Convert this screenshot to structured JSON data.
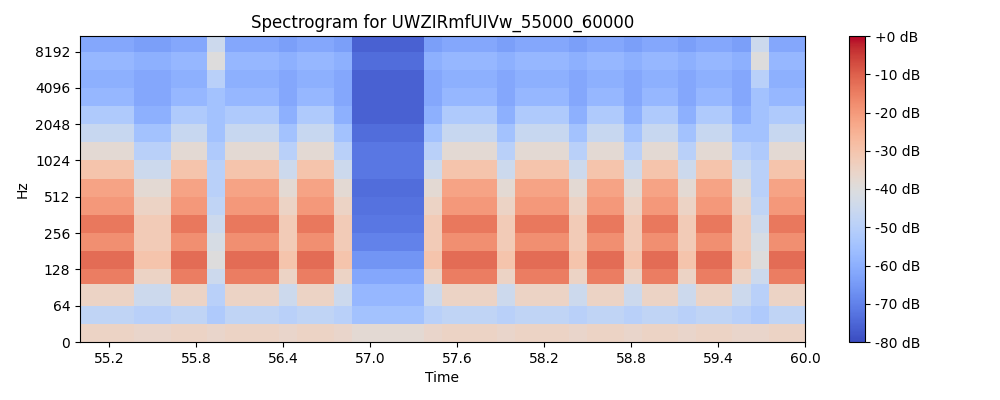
{
  "chart_data": {
    "type": "heatmap",
    "title": "Spectrogram for UWZIRmfUIVw_55000_60000",
    "x_label": "Time",
    "y_label": "Hz",
    "log": "y",
    "xlim": [
      55.0,
      60.0
    ],
    "xticks": [
      55.2,
      55.8,
      56.4,
      57.0,
      57.6,
      58.2,
      58.8,
      59.4,
      60.0
    ],
    "ylim": [
      0,
      11025
    ],
    "yticks": [
      0,
      64,
      128,
      256,
      512,
      1024,
      2048,
      4096,
      8192
    ],
    "x_edges": [
      55.0,
      55.125,
      55.25,
      55.375,
      55.5,
      55.625,
      55.75,
      55.875,
      56.0,
      56.125,
      56.25,
      56.375,
      56.5,
      56.625,
      56.75,
      56.875,
      57.0,
      57.125,
      57.25,
      57.375,
      57.5,
      57.625,
      57.75,
      57.875,
      58.0,
      58.125,
      58.25,
      58.375,
      58.5,
      58.625,
      58.75,
      58.875,
      59.0,
      59.125,
      59.25,
      59.375,
      59.5,
      59.625,
      59.75,
      59.875,
      60.0
    ],
    "y_edges": [
      0,
      32,
      64,
      96,
      128,
      181,
      256,
      362,
      512,
      724,
      1024,
      1448,
      2048,
      2896,
      4096,
      5793,
      8192,
      11025
    ],
    "cells": [
      [
        -35,
        -35,
        -35,
        -36,
        -36,
        -35,
        -35,
        -36,
        -35,
        -35,
        -35,
        -36,
        -35,
        -35,
        -36,
        -38,
        -38,
        -38,
        -38,
        -36,
        -35,
        -35,
        -35,
        -36,
        -35,
        -35,
        -35,
        -36,
        -35,
        -35,
        -36,
        -35,
        -35,
        -36,
        -35,
        -35,
        -36,
        -36,
        -35,
        -35
      ],
      [
        -48,
        -48,
        -48,
        -50,
        -50,
        -48,
        -48,
        -52,
        -48,
        -48,
        -48,
        -50,
        -48,
        -48,
        -50,
        -55,
        -55,
        -55,
        -55,
        -50,
        -48,
        -48,
        -48,
        -50,
        -48,
        -48,
        -48,
        -50,
        -48,
        -48,
        -50,
        -48,
        -48,
        -50,
        -48,
        -48,
        -50,
        -52,
        -48,
        -48
      ],
      [
        -35,
        -35,
        -35,
        -45,
        -45,
        -35,
        -35,
        -50,
        -35,
        -35,
        -35,
        -45,
        -35,
        -35,
        -45,
        -58,
        -58,
        -58,
        -58,
        -45,
        -35,
        -35,
        -35,
        -45,
        -35,
        -35,
        -35,
        -45,
        -35,
        -35,
        -45,
        -35,
        -35,
        -45,
        -35,
        -35,
        -45,
        -50,
        -35,
        -35
      ],
      [
        -15,
        -15,
        -15,
        -35,
        -35,
        -15,
        -15,
        -45,
        -15,
        -15,
        -15,
        -35,
        -15,
        -15,
        -35,
        -62,
        -62,
        -62,
        -62,
        -35,
        -15,
        -15,
        -15,
        -35,
        -15,
        -15,
        -15,
        -35,
        -15,
        -15,
        -35,
        -15,
        -15,
        -35,
        -15,
        -15,
        -35,
        -45,
        -15,
        -15
      ],
      [
        -12,
        -12,
        -12,
        -30,
        -30,
        -12,
        -12,
        -40,
        -12,
        -12,
        -12,
        -30,
        -12,
        -12,
        -30,
        -66,
        -66,
        -66,
        -66,
        -30,
        -12,
        -12,
        -12,
        -30,
        -12,
        -12,
        -12,
        -30,
        -12,
        -12,
        -30,
        -12,
        -12,
        -30,
        -12,
        -12,
        -30,
        -40,
        -12,
        -12
      ],
      [
        -18,
        -18,
        -18,
        -32,
        -32,
        -18,
        -18,
        -42,
        -18,
        -18,
        -18,
        -32,
        -18,
        -18,
        -32,
        -70,
        -70,
        -70,
        -70,
        -32,
        -18,
        -18,
        -18,
        -32,
        -18,
        -18,
        -18,
        -32,
        -18,
        -18,
        -32,
        -18,
        -18,
        -32,
        -18,
        -18,
        -32,
        -42,
        -18,
        -18
      ],
      [
        -14,
        -14,
        -14,
        -32,
        -32,
        -14,
        -14,
        -45,
        -14,
        -14,
        -14,
        -32,
        -14,
        -14,
        -32,
        -72,
        -72,
        -72,
        -72,
        -32,
        -14,
        -14,
        -14,
        -32,
        -14,
        -14,
        -14,
        -32,
        -14,
        -14,
        -32,
        -14,
        -14,
        -32,
        -14,
        -14,
        -32,
        -45,
        -14,
        -14
      ],
      [
        -20,
        -20,
        -20,
        -35,
        -35,
        -20,
        -20,
        -48,
        -20,
        -20,
        -20,
        -35,
        -20,
        -20,
        -35,
        -73,
        -73,
        -73,
        -73,
        -35,
        -20,
        -20,
        -20,
        -35,
        -20,
        -20,
        -20,
        -35,
        -20,
        -20,
        -35,
        -20,
        -20,
        -35,
        -20,
        -20,
        -35,
        -48,
        -20,
        -20
      ],
      [
        -22,
        -22,
        -22,
        -38,
        -38,
        -22,
        -22,
        -50,
        -22,
        -22,
        -22,
        -38,
        -22,
        -22,
        -38,
        -74,
        -74,
        -74,
        -74,
        -38,
        -22,
        -22,
        -22,
        -38,
        -22,
        -22,
        -22,
        -38,
        -22,
        -22,
        -38,
        -22,
        -22,
        -38,
        -22,
        -22,
        -38,
        -50,
        -22,
        -22
      ],
      [
        -30,
        -30,
        -30,
        -45,
        -45,
        -30,
        -30,
        -50,
        -30,
        -30,
        -30,
        -45,
        -30,
        -30,
        -45,
        -72,
        -72,
        -72,
        -72,
        -45,
        -30,
        -30,
        -30,
        -45,
        -30,
        -30,
        -30,
        -45,
        -30,
        -30,
        -45,
        -30,
        -30,
        -45,
        -30,
        -30,
        -45,
        -50,
        -30,
        -30
      ],
      [
        -38,
        -38,
        -38,
        -50,
        -50,
        -38,
        -38,
        -52,
        -38,
        -38,
        -38,
        -50,
        -38,
        -38,
        -50,
        -72,
        -72,
        -72,
        -72,
        -50,
        -38,
        -38,
        -38,
        -50,
        -38,
        -38,
        -38,
        -50,
        -38,
        -38,
        -50,
        -38,
        -38,
        -50,
        -38,
        -38,
        -50,
        -52,
        -38,
        -38
      ],
      [
        -46,
        -46,
        -46,
        -55,
        -55,
        -46,
        -46,
        -55,
        -46,
        -46,
        -46,
        -55,
        -46,
        -46,
        -55,
        -74,
        -74,
        -74,
        -74,
        -55,
        -46,
        -46,
        -46,
        -55,
        -46,
        -46,
        -46,
        -55,
        -46,
        -46,
        -55,
        -46,
        -46,
        -55,
        -46,
        -46,
        -55,
        -55,
        -46,
        -46
      ],
      [
        -52,
        -52,
        -52,
        -60,
        -60,
        -52,
        -52,
        -55,
        -52,
        -52,
        -52,
        -60,
        -52,
        -52,
        -60,
        -76,
        -76,
        -76,
        -76,
        -60,
        -52,
        -52,
        -52,
        -60,
        -52,
        -52,
        -52,
        -60,
        -52,
        -52,
        -60,
        -52,
        -52,
        -60,
        -52,
        -52,
        -60,
        -55,
        -52,
        -52
      ],
      [
        -58,
        -58,
        -58,
        -62,
        -62,
        -58,
        -58,
        -55,
        -58,
        -58,
        -58,
        -62,
        -58,
        -58,
        -62,
        -76,
        -76,
        -76,
        -76,
        -62,
        -58,
        -58,
        -58,
        -62,
        -58,
        -58,
        -58,
        -62,
        -58,
        -58,
        -62,
        -58,
        -58,
        -62,
        -58,
        -58,
        -62,
        -55,
        -58,
        -58
      ],
      [
        -60,
        -60,
        -60,
        -62,
        -62,
        -60,
        -60,
        -50,
        -60,
        -60,
        -60,
        -62,
        -60,
        -60,
        -62,
        -76,
        -76,
        -76,
        -76,
        -62,
        -60,
        -60,
        -60,
        -62,
        -60,
        -60,
        -60,
        -62,
        -60,
        -60,
        -62,
        -60,
        -60,
        -62,
        -60,
        -60,
        -62,
        -50,
        -60,
        -60
      ],
      [
        -58,
        -58,
        -58,
        -60,
        -60,
        -58,
        -58,
        -40,
        -58,
        -58,
        -58,
        -60,
        -58,
        -58,
        -60,
        -74,
        -74,
        -74,
        -74,
        -60,
        -58,
        -58,
        -58,
        -60,
        -58,
        -58,
        -58,
        -60,
        -58,
        -58,
        -60,
        -58,
        -58,
        -60,
        -58,
        -58,
        -60,
        -40,
        -58,
        -58
      ],
      [
        -62,
        -62,
        -62,
        -64,
        -64,
        -62,
        -62,
        -45,
        -62,
        -62,
        -62,
        -64,
        -62,
        -62,
        -64,
        -76,
        -76,
        -76,
        -76,
        -64,
        -62,
        -62,
        -62,
        -64,
        -62,
        -62,
        -62,
        -64,
        -62,
        -62,
        -64,
        -62,
        -62,
        -64,
        -62,
        -62,
        -64,
        -45,
        -62,
        -62
      ]
    ],
    "colorbar": {
      "range": [
        -80,
        0
      ],
      "ticks": [
        {
          "value": 0,
          "label": "+0 dB"
        },
        {
          "value": -10,
          "label": "-10 dB"
        },
        {
          "value": -20,
          "label": "-20 dB"
        },
        {
          "value": -30,
          "label": "-30 dB"
        },
        {
          "value": -40,
          "label": "-40 dB"
        },
        {
          "value": -50,
          "label": "-50 dB"
        },
        {
          "value": -60,
          "label": "-60 dB"
        },
        {
          "value": -70,
          "label": "-70 dB"
        },
        {
          "value": -80,
          "label": "-80 dB"
        }
      ]
    }
  }
}
